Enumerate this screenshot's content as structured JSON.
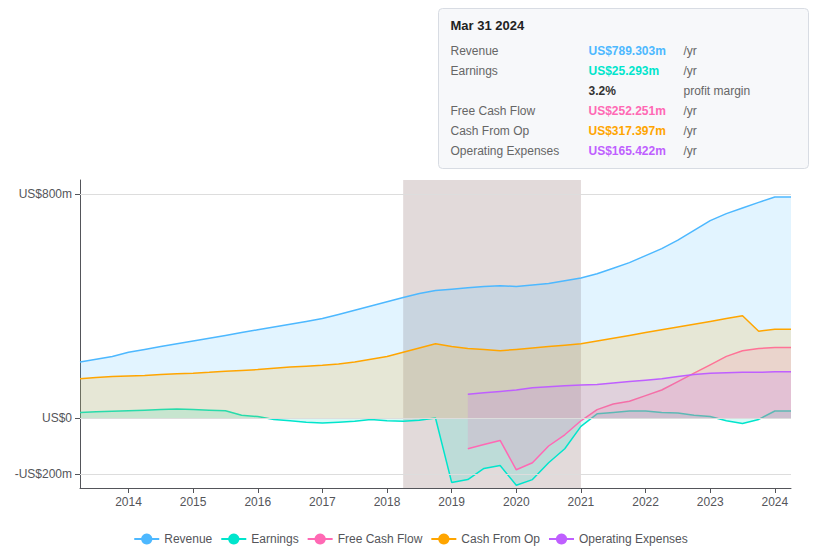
{
  "chart_data": {
    "type": "area",
    "annotations": {
      "title": "Mar 31 2024",
      "rows": [
        {
          "label": "Revenue",
          "value": "US$789.303m",
          "unit": "/yr",
          "color": "#4db8ff"
        },
        {
          "label": "Earnings",
          "value": "US$25.293m",
          "unit": "/yr",
          "color": "#00e5cc"
        },
        {
          "value": "3.2%",
          "unit": "profit margin"
        },
        {
          "label": "Free Cash Flow",
          "value": "US$252.251m",
          "unit": "/yr",
          "color": "#ff69b4"
        },
        {
          "label": "Cash From Op",
          "value": "US$317.397m",
          "unit": "/yr",
          "color": "#ffa500"
        },
        {
          "label": "Operating Expenses",
          "value": "US$165.422m",
          "unit": "/yr",
          "color": "#bf5fff"
        }
      ]
    },
    "x": [
      2013.25,
      2013.5,
      2013.75,
      2014.0,
      2014.25,
      2014.5,
      2014.75,
      2015.0,
      2015.25,
      2015.5,
      2015.75,
      2016.0,
      2016.25,
      2016.5,
      2016.75,
      2017.0,
      2017.25,
      2017.5,
      2017.75,
      2018.0,
      2018.25,
      2018.5,
      2018.75,
      2019.0,
      2019.25,
      2019.5,
      2019.75,
      2020.0,
      2020.25,
      2020.5,
      2020.75,
      2021.0,
      2021.25,
      2021.5,
      2021.75,
      2022.0,
      2022.25,
      2022.5,
      2022.75,
      2023.0,
      2023.25,
      2023.5,
      2023.75,
      2024.0,
      2024.25
    ],
    "series": [
      {
        "name": "Revenue",
        "color": "#4db8ff",
        "values": [
          200,
          210,
          220,
          235,
          245,
          255,
          265,
          275,
          285,
          295,
          305,
          315,
          325,
          335,
          345,
          355,
          370,
          385,
          400,
          415,
          430,
          445,
          455,
          460,
          465,
          470,
          472,
          470,
          475,
          480,
          490,
          500,
          515,
          535,
          555,
          580,
          605,
          635,
          670,
          705,
          730,
          750,
          770,
          789,
          789
        ]
      },
      {
        "name": "Earnings",
        "color": "#00e5cc",
        "values": [
          20,
          22,
          24,
          26,
          28,
          30,
          32,
          30,
          28,
          26,
          10,
          5,
          -5,
          -10,
          -15,
          -18,
          -15,
          -12,
          -5,
          -10,
          -12,
          -8,
          0,
          -230,
          -220,
          -180,
          -170,
          -240,
          -220,
          -160,
          -110,
          -30,
          15,
          20,
          25,
          25,
          20,
          18,
          10,
          5,
          -10,
          -20,
          -5,
          25,
          25
        ]
      },
      {
        "name": "Free Cash Flow",
        "color": "#ff69b4",
        "values": [
          null,
          null,
          null,
          null,
          null,
          null,
          null,
          null,
          null,
          null,
          null,
          null,
          null,
          null,
          null,
          null,
          null,
          null,
          null,
          null,
          null,
          null,
          null,
          null,
          -110,
          -95,
          -80,
          -185,
          -160,
          -100,
          -60,
          -10,
          30,
          50,
          60,
          80,
          100,
          130,
          160,
          190,
          220,
          240,
          248,
          252,
          252
        ]
      },
      {
        "name": "Cash From Op",
        "color": "#ffa500",
        "values": [
          140,
          145,
          148,
          150,
          152,
          155,
          158,
          160,
          163,
          167,
          170,
          173,
          178,
          182,
          185,
          188,
          193,
          200,
          210,
          220,
          235,
          250,
          265,
          255,
          248,
          245,
          240,
          245,
          250,
          255,
          260,
          265,
          275,
          285,
          295,
          305,
          315,
          325,
          335,
          345,
          355,
          365,
          310,
          317,
          317
        ]
      },
      {
        "name": "Operating Expenses",
        "color": "#bf5fff",
        "values": [
          null,
          null,
          null,
          null,
          null,
          null,
          null,
          null,
          null,
          null,
          null,
          null,
          null,
          null,
          null,
          null,
          null,
          null,
          null,
          null,
          null,
          null,
          null,
          null,
          85,
          90,
          95,
          100,
          108,
          112,
          115,
          118,
          120,
          125,
          130,
          135,
          140,
          148,
          155,
          160,
          162,
          163,
          163,
          165,
          165
        ]
      }
    ],
    "xlim": [
      2013.25,
      2024.25
    ],
    "xticks": [
      2014,
      2015,
      2016,
      2017,
      2018,
      2019,
      2020,
      2021,
      2022,
      2023,
      2024
    ],
    "ylim": [
      -250,
      850
    ],
    "yticks": [
      {
        "value": -200,
        "label": "-US$200m"
      },
      {
        "value": 0,
        "label": "US$0"
      },
      {
        "value": 800,
        "label": "US$800m"
      }
    ],
    "grid": true,
    "legend": "bottom",
    "shaded_region": {
      "x_start": 2018.25,
      "x_end": 2021.0,
      "color": "#3a0808"
    }
  }
}
